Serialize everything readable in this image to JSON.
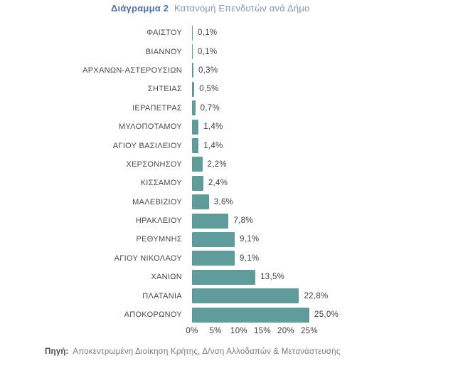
{
  "title": {
    "prefix": "Διάγραμμα 2",
    "text": "Κατανομή Επενδυτών ανά Δήμο"
  },
  "chart_data": {
    "type": "bar",
    "orientation": "horizontal",
    "title": "Διάγραμμα 2 Κατανομή Επενδυτών ανά Δήμο",
    "categories": [
      "ΦΑΙΣΤΟΥ",
      "ΒΙΑΝΝΟΥ",
      "ΑΡΧΑΝΩΝ-ΑΣΤΕΡΟΥΣΙΩΝ",
      "ΣΗΤΕΙΑΣ",
      "ΙΕΡΑΠΕΤΡΑΣ",
      "ΜΥΛΟΠΟΤΑΜΟΥ",
      "ΑΓΙΟΥ ΒΑΣΙΛΕΙΟΥ",
      "ΧΕΡΣΟΝΗΣΟΥ",
      "ΚΙΣΣΑΜΟΥ",
      "ΜΑΛΕΒΙΖΙΟΥ",
      "ΗΡΑΚΛΕΙΟΥ",
      "ΡΕΘΥΜΝΗΣ",
      "ΑΓΙΟΥ ΝΙΚΟΛΑΟΥ",
      "ΧΑΝΙΩΝ",
      "ΠΛΑΤΑΝΙΑ",
      "ΑΠΟΚΟΡΩΝΟΥ"
    ],
    "values": [
      0.1,
      0.1,
      0.3,
      0.5,
      0.7,
      1.4,
      1.4,
      2.2,
      2.4,
      3.6,
      7.8,
      9.1,
      9.1,
      13.5,
      22.8,
      25.0
    ],
    "value_labels": [
      "0,1%",
      "0,1%",
      "0,3%",
      "0,5%",
      "0,7%",
      "1,4%",
      "1,4%",
      "2,2%",
      "2,4%",
      "3,6%",
      "7,8%",
      "9,1%",
      "9,1%",
      "13,5%",
      "22,8%",
      "25,0%"
    ],
    "x_ticks": [
      "0%",
      "5%",
      "10%",
      "15%",
      "20%",
      "25%"
    ],
    "x_tick_values": [
      0,
      5,
      10,
      15,
      20,
      25
    ],
    "xlim": [
      0,
      25
    ],
    "grid": false,
    "legend": "none",
    "bar_color": "#5F9B98"
  },
  "source": {
    "label": "Πηγή:",
    "text": "Αποκεντρωμένη Διοίκηση Κρήτης, Δ/νση Αλλοδαπών & Μετανάστευσής"
  }
}
